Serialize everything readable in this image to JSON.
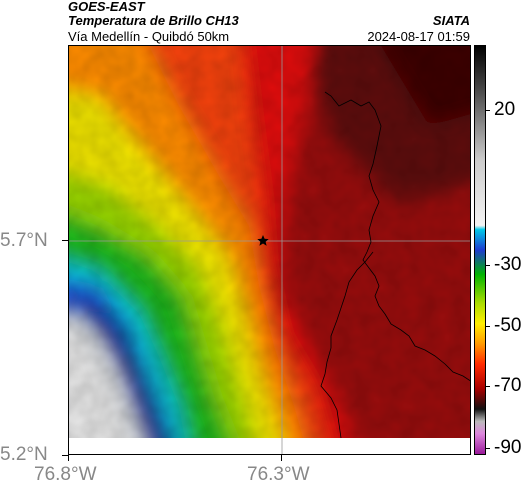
{
  "header": {
    "satellite": "GOES-EAST",
    "product": "Temperatura de Brillo CH13",
    "organization": "SIATA",
    "region": "Vía Medellín - Quibdó 50km",
    "datetime": "2024-08-17 01:59"
  },
  "map": {
    "y_tick_labels": [
      "5.7°N",
      "5.2°N"
    ],
    "x_tick_labels": [
      "76.8°W",
      "76.3°W"
    ],
    "marker": "star-marker"
  },
  "colorbar": {
    "tick_labels": [
      "20",
      "-30",
      "-50",
      "-70",
      "-90"
    ]
  }
}
